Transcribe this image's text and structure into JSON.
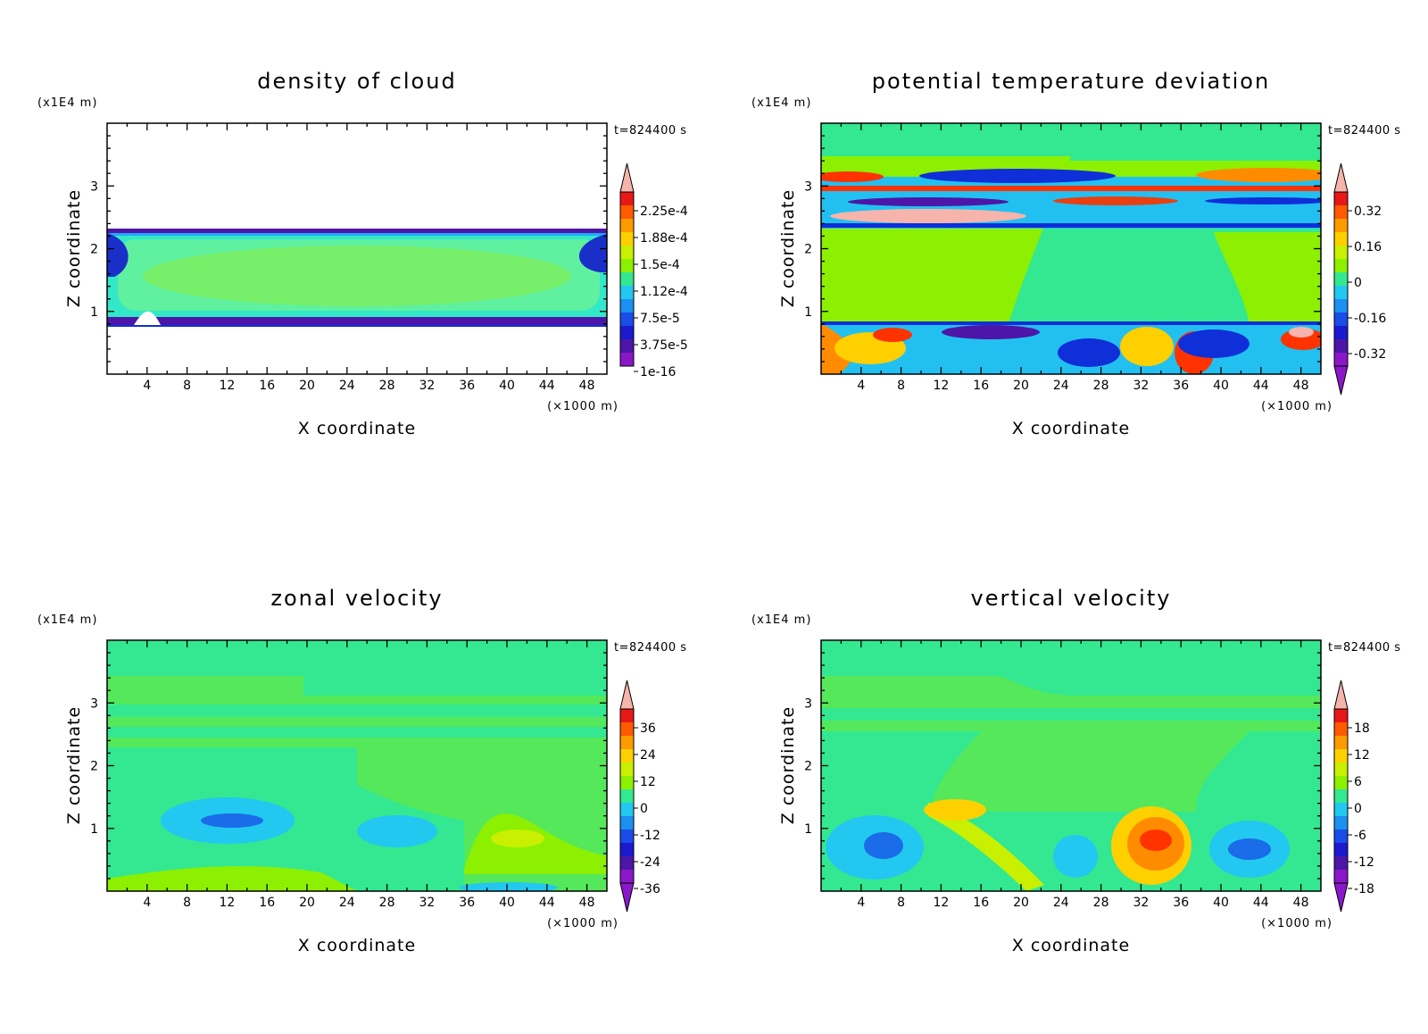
{
  "chart_data": [
    {
      "type": "heatmap",
      "title": "density of cloud",
      "xlabel": "X coordinate",
      "ylabel": "Z coordinate",
      "x_unit": "(×1000 m)",
      "y_unit": "(x1E4 m)",
      "time_label": "t=824400 s",
      "xlim": [
        0,
        50
      ],
      "ylim": [
        0,
        4
      ],
      "x_ticks": [
        4,
        8,
        12,
        16,
        20,
        24,
        28,
        32,
        36,
        40,
        44,
        48
      ],
      "y_ticks": [
        1,
        2,
        3
      ],
      "colorbar_labels": [
        "2.25e-4",
        "1.88e-4",
        "1.5e-4",
        "1.12e-4",
        "7.5e-5",
        "3.75e-5",
        "1e-16"
      ],
      "colorbar_extend": "max",
      "features": [
        {
          "region": "cloud layer",
          "x": [
            0,
            50
          ],
          "z": [
            0.8,
            2.3
          ],
          "level": "1.12e-4 to 1.5e-4"
        },
        {
          "region": "layer edges",
          "z": [
            0.8,
            2.3
          ],
          "level": "1e-16 to 3.75e-5"
        }
      ]
    },
    {
      "type": "heatmap",
      "title": "potential temperature deviation",
      "xlabel": "X coordinate",
      "ylabel": "Z coordinate",
      "x_unit": "(×1000 m)",
      "y_unit": "(x1E4 m)",
      "time_label": "t=824400 s",
      "xlim": [
        0,
        50
      ],
      "ylim": [
        0,
        4
      ],
      "x_ticks": [
        4,
        8,
        12,
        16,
        20,
        24,
        28,
        32,
        36,
        40,
        44,
        48
      ],
      "y_ticks": [
        1,
        2,
        3
      ],
      "colorbar_labels": [
        "0.32",
        "0.16",
        "0",
        "-0.16",
        "-0.32"
      ],
      "colorbar_extend": "both",
      "features": [
        {
          "region": "upper oscillating bands",
          "z": [
            2.3,
            3.3
          ]
        },
        {
          "region": "turbulent boundary layer",
          "z": [
            0,
            0.8
          ]
        }
      ]
    },
    {
      "type": "heatmap",
      "title": "zonal velocity",
      "xlabel": "X coordinate",
      "ylabel": "Z coordinate",
      "x_unit": "(×1000 m)",
      "y_unit": "(x1E4 m)",
      "time_label": "t=824400 s",
      "xlim": [
        0,
        50
      ],
      "ylim": [
        0,
        4
      ],
      "x_ticks": [
        4,
        8,
        12,
        16,
        20,
        24,
        28,
        32,
        36,
        40,
        44,
        48
      ],
      "y_ticks": [
        1,
        2,
        3
      ],
      "colorbar_labels": [
        "36",
        "24",
        "12",
        "0",
        "-12",
        "-24",
        "-36"
      ],
      "colorbar_extend": "both",
      "features": [
        {
          "region": "negative wind core",
          "x": [
            8,
            18
          ],
          "z": [
            1.0,
            1.3
          ],
          "value": -12
        },
        {
          "region": "positive wind patch",
          "x": [
            36,
            44
          ],
          "z": [
            0.4,
            1.0
          ],
          "value": 12
        }
      ]
    },
    {
      "type": "heatmap",
      "title": "vertical velocity",
      "xlabel": "X coordinate",
      "ylabel": "Z coordinate",
      "x_unit": "(×1000 m)",
      "y_unit": "(x1E4 m)",
      "time_label": "t=824400 s",
      "xlim": [
        0,
        50
      ],
      "ylim": [
        0,
        4
      ],
      "x_ticks": [
        4,
        8,
        12,
        16,
        20,
        24,
        28,
        32,
        36,
        40,
        44,
        48
      ],
      "y_ticks": [
        1,
        2,
        3
      ],
      "colorbar_labels": [
        "18",
        "12",
        "6",
        "0",
        "-6",
        "-12",
        "-18"
      ],
      "colorbar_extend": "both",
      "features": [
        {
          "region": "downdraft",
          "x": [
            5,
            10
          ],
          "z": [
            0.4,
            1.0
          ],
          "value": -12
        },
        {
          "region": "updraft",
          "x": [
            31,
            36
          ],
          "z": [
            0.4,
            1.0
          ],
          "value": 12
        },
        {
          "region": "downdraft",
          "x": [
            41,
            47
          ],
          "z": [
            0.5,
            0.9
          ],
          "value": -12
        }
      ]
    }
  ]
}
